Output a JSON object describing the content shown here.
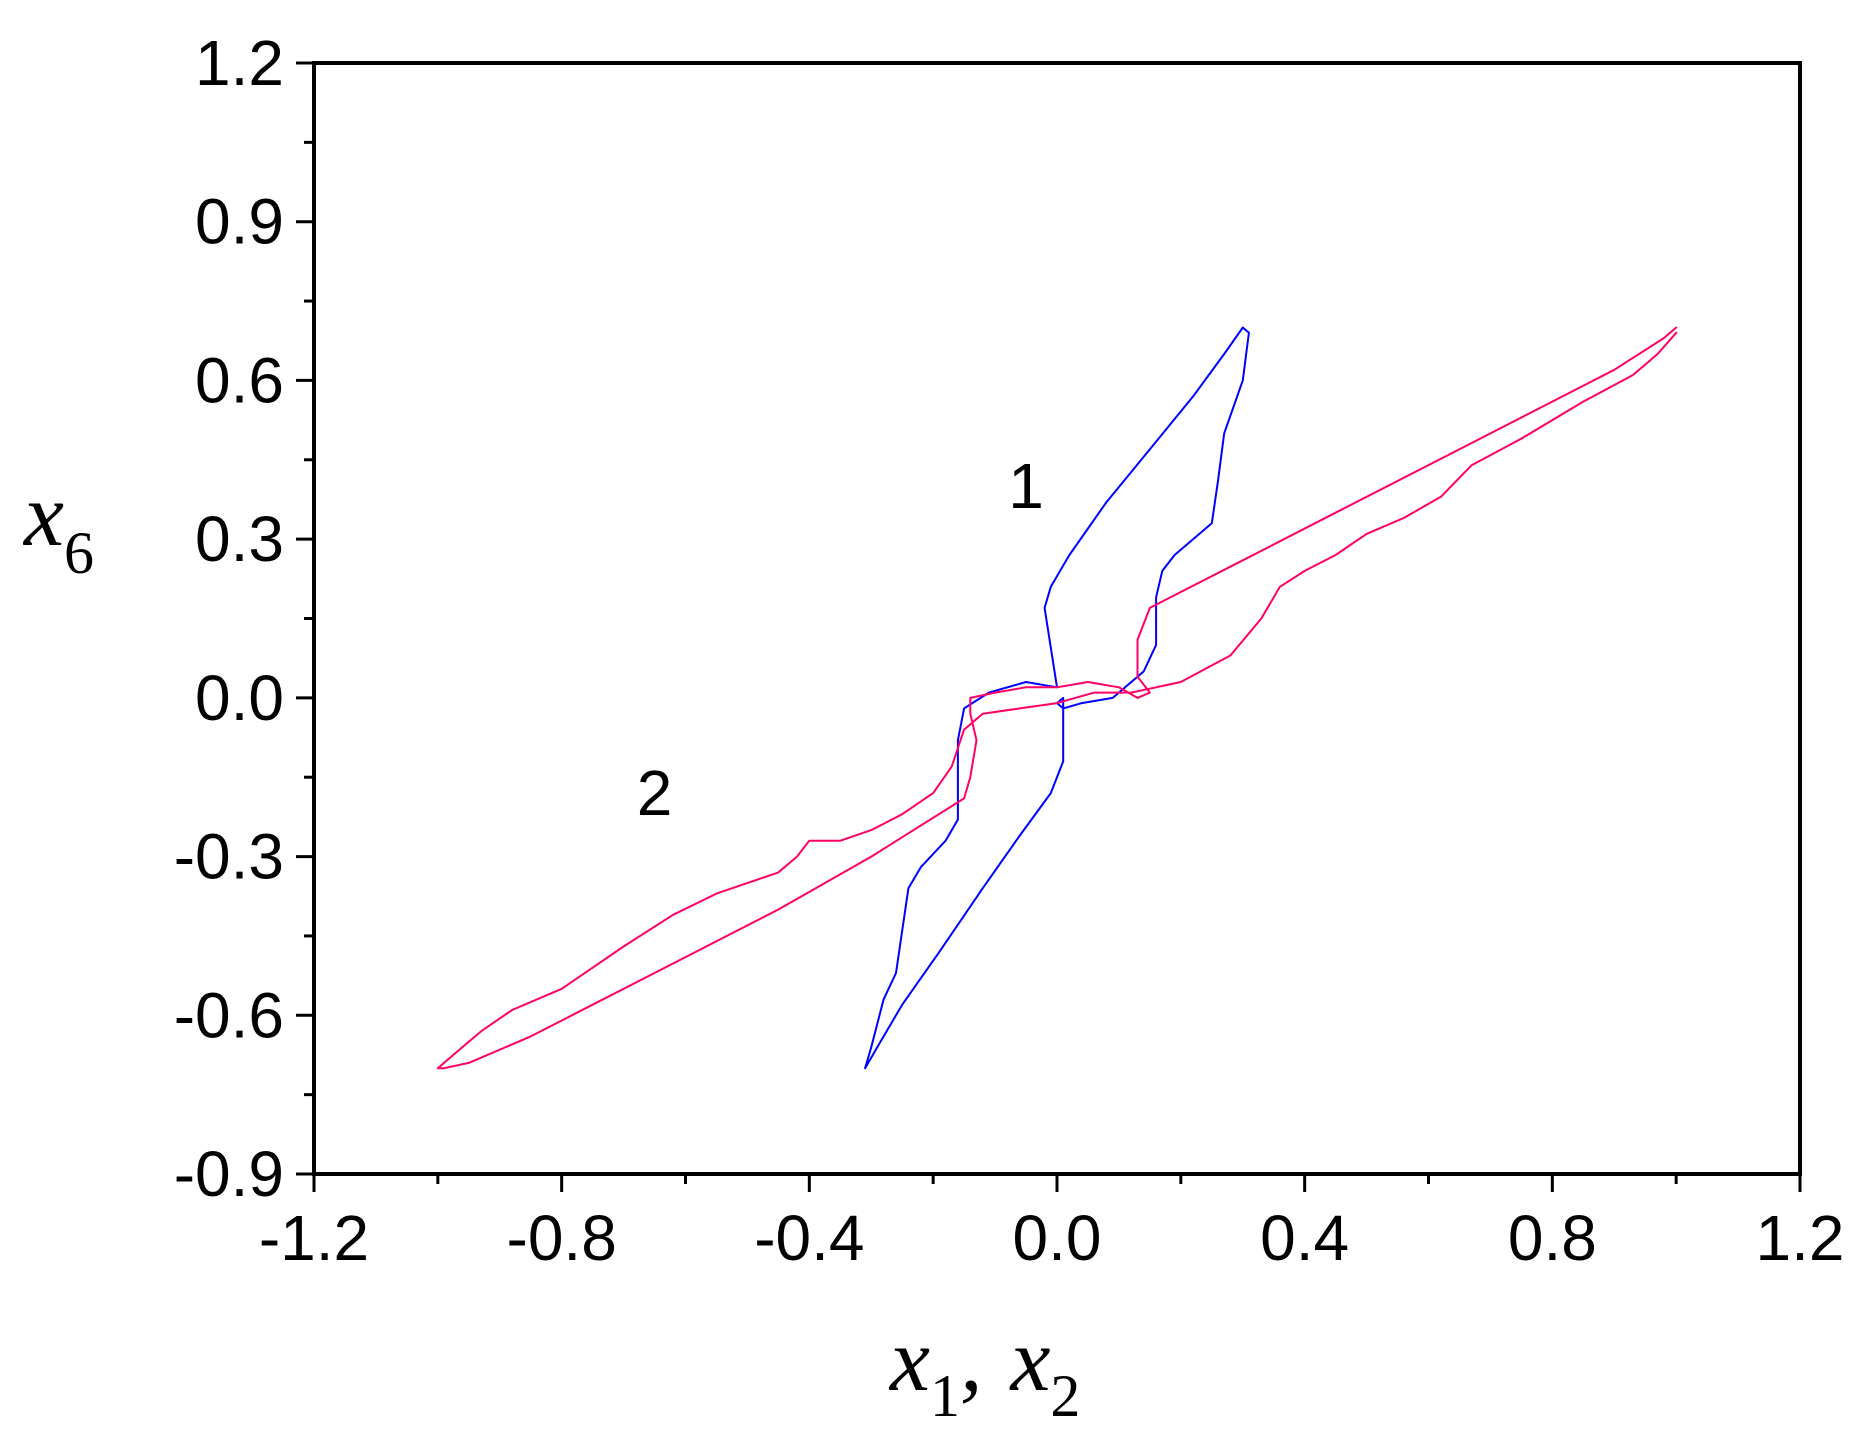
{
  "chart_data": {
    "type": "line",
    "title": "",
    "xlabel": {
      "base": "x",
      "sub1": "1",
      "separator": ",",
      "base2": "x",
      "sub2": "2"
    },
    "ylabel": {
      "base": "x",
      "sub": "6"
    },
    "xlim": [
      -1.2,
      1.2
    ],
    "ylim": [
      -0.9,
      1.2
    ],
    "x_ticks": [
      "-1.2",
      "-0.8",
      "-0.4",
      "0.0",
      "0.4",
      "0.8",
      "1.2"
    ],
    "y_ticks": [
      "-0.9",
      "-0.6",
      "-0.3",
      "0.0",
      "0.3",
      "0.6",
      "0.9",
      "1.2"
    ],
    "grid": false,
    "annotations": [
      {
        "text": "1",
        "x": -0.05,
        "y": 0.4
      },
      {
        "text": "2",
        "x": -0.65,
        "y": -0.18
      }
    ],
    "series": [
      {
        "label": "1",
        "color": "#0000ff",
        "x": [
          0.0,
          -0.02,
          -0.01,
          0.02,
          0.08,
          0.15,
          0.22,
          0.27,
          0.3,
          0.31,
          0.3,
          0.27,
          0.26,
          0.25,
          0.22,
          0.19,
          0.17,
          0.16,
          0.16,
          0.14,
          0.09,
          0.04,
          0.01,
          0.0,
          0.01,
          0.01,
          -0.01,
          -0.06,
          -0.12,
          -0.19,
          -0.25,
          -0.29,
          -0.31,
          -0.3,
          -0.28,
          -0.26,
          -0.25,
          -0.24,
          -0.22,
          -0.18,
          -0.16,
          -0.16,
          -0.16,
          -0.15,
          -0.11,
          -0.05,
          0.0
        ],
        "y": [
          0.02,
          0.17,
          0.21,
          0.27,
          0.37,
          0.47,
          0.57,
          0.65,
          0.7,
          0.69,
          0.6,
          0.5,
          0.41,
          0.33,
          0.3,
          0.27,
          0.24,
          0.19,
          0.1,
          0.05,
          0.0,
          -0.01,
          -0.02,
          -0.01,
          0.0,
          -0.12,
          -0.18,
          -0.26,
          -0.36,
          -0.48,
          -0.58,
          -0.66,
          -0.7,
          -0.66,
          -0.57,
          -0.52,
          -0.44,
          -0.36,
          -0.32,
          -0.27,
          -0.23,
          -0.17,
          -0.08,
          -0.02,
          0.01,
          0.03,
          0.02
        ]
      },
      {
        "label": "2",
        "color": "#ff0066",
        "x": [
          1.0,
          0.97,
          0.93,
          0.85,
          0.75,
          0.67,
          0.62,
          0.56,
          0.5,
          0.45,
          0.4,
          0.36,
          0.33,
          0.28,
          0.2,
          0.12,
          0.06,
          0.0,
          -0.06,
          -0.12,
          -0.15,
          -0.17,
          -0.2,
          -0.25,
          -0.3,
          -0.35,
          -0.4,
          -0.42,
          -0.45,
          -0.55,
          -0.62,
          -0.7,
          -0.75,
          -0.8,
          -0.88,
          -0.93,
          -0.97,
          -1.0,
          -0.99,
          -0.95,
          -0.85,
          -0.75,
          -0.6,
          -0.45,
          -0.3,
          -0.15,
          -0.14,
          -0.13,
          -0.14,
          -0.14,
          -0.1,
          -0.05,
          0.0,
          0.05,
          0.1,
          0.13,
          0.15,
          0.13,
          0.13,
          0.15,
          0.2,
          0.3,
          0.45,
          0.6,
          0.75,
          0.9,
          0.98,
          1.0
        ],
        "y": [
          0.69,
          0.65,
          0.61,
          0.56,
          0.49,
          0.44,
          0.38,
          0.34,
          0.31,
          0.27,
          0.24,
          0.21,
          0.15,
          0.08,
          0.03,
          0.01,
          0.01,
          -0.01,
          -0.02,
          -0.03,
          -0.06,
          -0.13,
          -0.18,
          -0.22,
          -0.25,
          -0.27,
          -0.27,
          -0.3,
          -0.33,
          -0.37,
          -0.41,
          -0.47,
          -0.51,
          -0.55,
          -0.59,
          -0.63,
          -0.67,
          -0.7,
          -0.7,
          -0.69,
          -0.64,
          -0.58,
          -0.49,
          -0.4,
          -0.3,
          -0.19,
          -0.15,
          -0.08,
          -0.03,
          0.0,
          0.01,
          0.02,
          0.02,
          0.03,
          0.02,
          0.0,
          0.01,
          0.04,
          0.11,
          0.17,
          0.2,
          0.26,
          0.35,
          0.44,
          0.53,
          0.62,
          0.68,
          0.7
        ]
      }
    ]
  }
}
